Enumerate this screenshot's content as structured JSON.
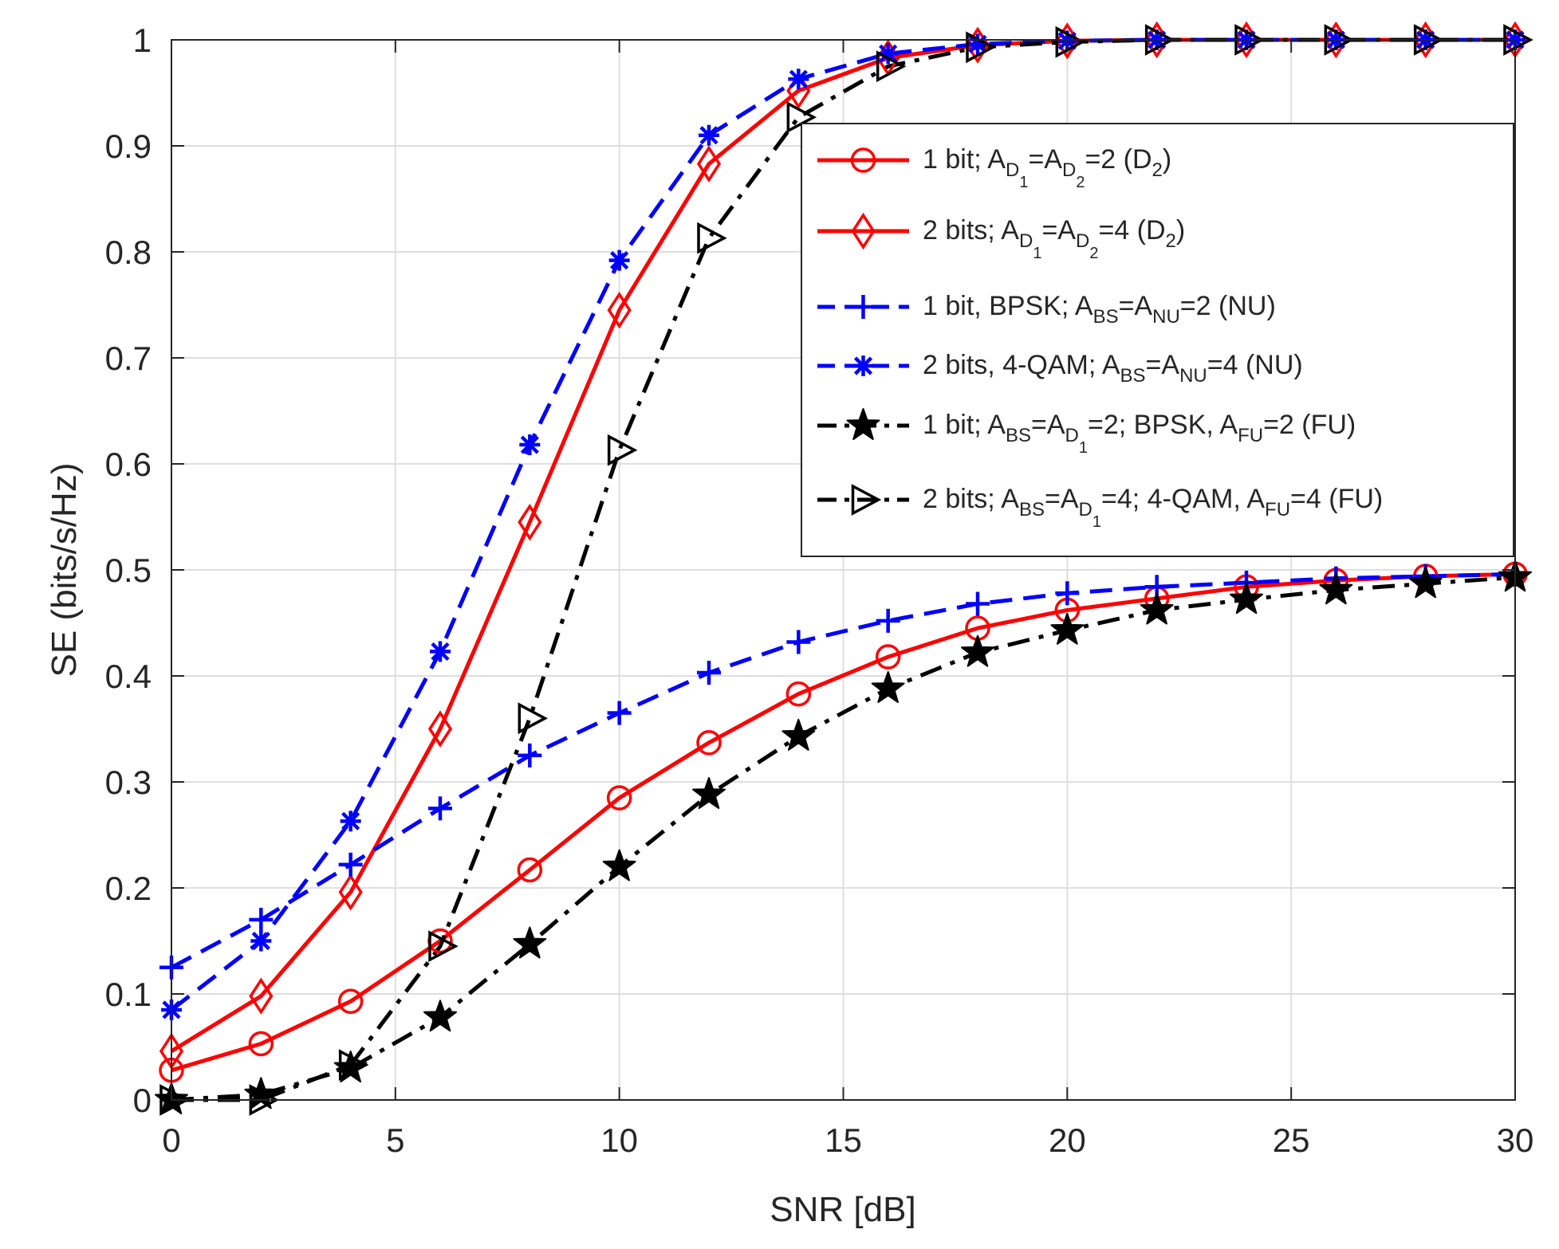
{
  "chart_data": {
    "type": "line",
    "xlabel": "SNR [dB]",
    "ylabel": "SE (bits/s/Hz)",
    "xlim": [
      0,
      30
    ],
    "ylim": [
      0,
      1
    ],
    "xticks": [
      0,
      5,
      10,
      15,
      20,
      25,
      30
    ],
    "yticks": [
      0,
      0.1,
      0.2,
      0.3,
      0.4,
      0.5,
      0.6,
      0.7,
      0.8,
      0.9,
      1
    ],
    "xtick_labels": [
      "0",
      "5",
      "10",
      "15",
      "20",
      "25",
      "30"
    ],
    "ytick_labels": [
      "0",
      "0.1",
      "0.2",
      "0.3",
      "0.4",
      "0.5",
      "0.6",
      "0.7",
      "0.8",
      "0.9",
      "1"
    ],
    "grid": true,
    "legend_position": "top-right",
    "x": [
      0,
      2,
      4,
      6,
      8,
      10,
      12,
      14,
      16,
      18,
      20,
      22,
      24,
      26,
      28,
      30
    ],
    "series": [
      {
        "name": "1 bit; A_D1=A_D2=2 (D2)",
        "legend_parts": [
          {
            "t": "1 bit; A"
          },
          {
            "t": "D",
            "s": "sub"
          },
          {
            "t": "1",
            "s": "subsub"
          },
          {
            "t": "=A"
          },
          {
            "t": "D",
            "s": "sub"
          },
          {
            "t": "2",
            "s": "subsub"
          },
          {
            "t": "=2 (D"
          },
          {
            "t": "2",
            "s": "sub"
          },
          {
            "t": ")"
          }
        ],
        "color": "#ff0000",
        "dash": "solid",
        "marker": "circle",
        "values": [
          0.028,
          0.053,
          0.093,
          0.15,
          0.217,
          0.285,
          0.337,
          0.383,
          0.418,
          0.445,
          0.462,
          0.473,
          0.484,
          0.49,
          0.494,
          0.496
        ]
      },
      {
        "name": "2 bits; A_D1=A_D2=4 (D2)",
        "legend_parts": [
          {
            "t": "2 bits; A"
          },
          {
            "t": "D",
            "s": "sub"
          },
          {
            "t": "1",
            "s": "subsub"
          },
          {
            "t": "=A"
          },
          {
            "t": "D",
            "s": "sub"
          },
          {
            "t": "2",
            "s": "subsub"
          },
          {
            "t": "=4 (D"
          },
          {
            "t": "2",
            "s": "sub"
          },
          {
            "t": ")"
          }
        ],
        "color": "#ff0000",
        "dash": "solid",
        "marker": "diamond",
        "values": [
          0.046,
          0.098,
          0.196,
          0.35,
          0.545,
          0.745,
          0.883,
          0.952,
          0.983,
          0.995,
          0.999,
          1.0,
          1.0,
          1.0,
          1.0,
          1.0
        ]
      },
      {
        "name": "1 bit, BPSK; A_BS=A_NU=2 (NU)",
        "legend_parts": [
          {
            "t": "1 bit, BPSK; A"
          },
          {
            "t": "BS",
            "s": "sub"
          },
          {
            "t": "=A"
          },
          {
            "t": "NU",
            "s": "sub"
          },
          {
            "t": "=2 (NU)"
          }
        ],
        "color": "#0000ff",
        "dash": "dash",
        "marker": "plus",
        "values": [
          0.125,
          0.17,
          0.222,
          0.275,
          0.325,
          0.365,
          0.403,
          0.432,
          0.452,
          0.468,
          0.478,
          0.484,
          0.488,
          0.492,
          0.494,
          0.496
        ]
      },
      {
        "name": "2 bits, 4-QAM; A_BS=A_NU=4 (NU)",
        "legend_parts": [
          {
            "t": "2 bits, 4-QAM; A"
          },
          {
            "t": "BS",
            "s": "sub"
          },
          {
            "t": "=A"
          },
          {
            "t": "NU",
            "s": "sub"
          },
          {
            "t": "=4 (NU)"
          }
        ],
        "color": "#0000ff",
        "dash": "dash",
        "marker": "asterisk",
        "values": [
          0.085,
          0.15,
          0.263,
          0.423,
          0.618,
          0.792,
          0.91,
          0.963,
          0.987,
          0.996,
          0.999,
          1.0,
          1.0,
          1.0,
          1.0,
          1.0
        ]
      },
      {
        "name": "1 bit; A_BS=A_D1=2; BPSK, A_FU=2 (FU)",
        "legend_parts": [
          {
            "t": "1 bit; A"
          },
          {
            "t": "BS",
            "s": "sub"
          },
          {
            "t": "=A"
          },
          {
            "t": "D",
            "s": "sub"
          },
          {
            "t": "1",
            "s": "subsub"
          },
          {
            "t": "=2; BPSK, A"
          },
          {
            "t": "FU",
            "s": "sub"
          },
          {
            "t": "=2 (FU)"
          }
        ],
        "color": "#000000",
        "dash": "dashdot",
        "marker": "star",
        "values": [
          0.0,
          0.005,
          0.03,
          0.078,
          0.147,
          0.22,
          0.288,
          0.343,
          0.388,
          0.422,
          0.443,
          0.462,
          0.472,
          0.481,
          0.487,
          0.493
        ]
      },
      {
        "name": "2 bits; A_BS=A_D1=4; 4-QAM, A_FU=4 (FU)",
        "legend_parts": [
          {
            "t": "2 bits; A"
          },
          {
            "t": "BS",
            "s": "sub"
          },
          {
            "t": "=A"
          },
          {
            "t": "D",
            "s": "sub"
          },
          {
            "t": "1",
            "s": "subsub"
          },
          {
            "t": "=4; 4-QAM, A"
          },
          {
            "t": "FU",
            "s": "sub"
          },
          {
            "t": "=4 (FU)"
          }
        ],
        "color": "#000000",
        "dash": "dashdot",
        "marker": "triangle-right",
        "values": [
          0.0,
          0.0,
          0.033,
          0.145,
          0.36,
          0.613,
          0.813,
          0.927,
          0.975,
          0.993,
          0.998,
          1.0,
          1.0,
          1.0,
          1.0,
          1.0
        ]
      }
    ]
  }
}
